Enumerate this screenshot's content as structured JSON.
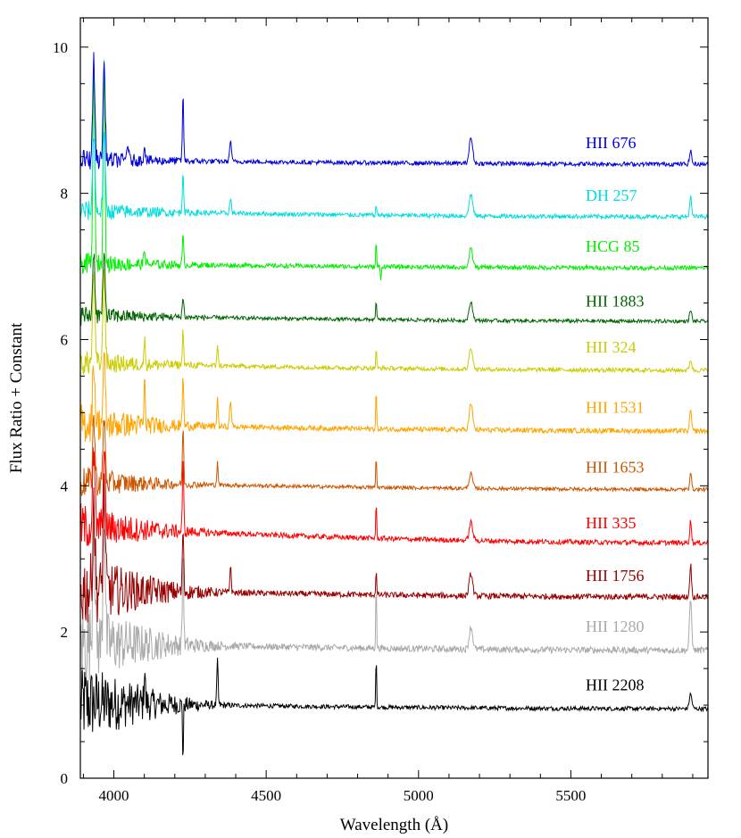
{
  "chart_data": {
    "type": "line",
    "title": "",
    "xlabel": "Wavelength (Å)",
    "ylabel": "Flux Ratio + Constant",
    "xlim": [
      3890,
      5950
    ],
    "ylim": [
      0,
      10.4
    ],
    "xticks": [
      4000,
      4500,
      5000,
      5500
    ],
    "yticks": [
      0,
      2,
      4,
      6,
      8,
      10
    ],
    "grid": false,
    "legend": "inline labels at right",
    "series": [
      {
        "name": "HII 676",
        "color": "#0000dd",
        "offset": 8.4,
        "slope": 0.06,
        "labels_y": 8.62,
        "noise": 0.03,
        "blue_noise": 0.12,
        "features": [
          [
            3934,
            1.35,
            5
          ],
          [
            3968,
            1.3,
            5
          ],
          [
            4227,
            0.9,
            3
          ],
          [
            4383,
            0.3,
            4
          ],
          [
            5172,
            0.35,
            8
          ],
          [
            5893,
            0.18,
            5
          ],
          [
            4045,
            0.25,
            4
          ],
          [
            4101,
            0.2,
            4
          ]
        ]
      },
      {
        "name": "DH 257",
        "color": "#00dddd",
        "offset": 7.68,
        "slope": 0.08,
        "labels_y": 7.9,
        "noise": 0.03,
        "blue_noise": 0.12,
        "features": [
          [
            3934,
            1.1,
            5
          ],
          [
            3968,
            1.05,
            5
          ],
          [
            4227,
            0.6,
            3
          ],
          [
            4383,
            0.2,
            4
          ],
          [
            5172,
            0.3,
            8
          ],
          [
            5893,
            0.3,
            4
          ],
          [
            4861,
            0.15,
            2
          ]
        ]
      },
      {
        "name": "HCG 85",
        "color": "#00ee00",
        "offset": 6.98,
        "slope": 0.06,
        "labels_y": 7.2,
        "noise": 0.03,
        "blue_noise": 0.12,
        "features": [
          [
            3934,
            2.9,
            4
          ],
          [
            3968,
            2.9,
            4
          ],
          [
            4227,
            0.4,
            3
          ],
          [
            4861,
            0.35,
            2
          ],
          [
            4876,
            -0.2,
            2
          ],
          [
            5172,
            0.25,
            8
          ],
          [
            4101,
            0.2,
            4
          ]
        ]
      },
      {
        "name": "HII 1883",
        "color": "#006400",
        "offset": 6.25,
        "slope": 0.08,
        "labels_y": 6.45,
        "noise": 0.025,
        "blue_noise": 0.12,
        "features": [
          [
            3934,
            0.9,
            5
          ],
          [
            3968,
            0.85,
            5
          ],
          [
            4227,
            0.25,
            4
          ],
          [
            4861,
            0.3,
            2
          ],
          [
            5172,
            0.25,
            8
          ],
          [
            5893,
            0.15,
            5
          ]
        ]
      },
      {
        "name": "HII 324",
        "color": "#cccc00",
        "offset": 5.58,
        "slope": 0.1,
        "labels_y": 5.82,
        "noise": 0.03,
        "blue_noise": 0.15,
        "features": [
          [
            3934,
            1.3,
            5
          ],
          [
            3968,
            1.3,
            5
          ],
          [
            4101,
            0.35,
            3
          ],
          [
            4227,
            0.5,
            3
          ],
          [
            4340,
            0.3,
            3
          ],
          [
            4861,
            0.3,
            2
          ],
          [
            5172,
            0.3,
            8
          ],
          [
            5893,
            0.15,
            5
          ]
        ]
      },
      {
        "name": "HII 1531",
        "color": "#ffa500",
        "offset": 4.75,
        "slope": 0.1,
        "labels_y": 5.0,
        "noise": 0.035,
        "blue_noise": 0.25,
        "features": [
          [
            3934,
            0.9,
            5
          ],
          [
            3968,
            0.9,
            5
          ],
          [
            4101,
            0.6,
            3
          ],
          [
            4227,
            0.7,
            3
          ],
          [
            4340,
            0.4,
            3
          ],
          [
            4383,
            0.35,
            4
          ],
          [
            4861,
            0.55,
            2
          ],
          [
            5172,
            0.35,
            8
          ],
          [
            5893,
            0.3,
            4
          ]
        ]
      },
      {
        "name": "HII 1653",
        "color": "#cc5500",
        "offset": 3.95,
        "slope": 0.1,
        "labels_y": 4.18,
        "noise": 0.025,
        "blue_noise": 0.2,
        "features": [
          [
            3934,
            0.9,
            5
          ],
          [
            3968,
            0.9,
            5
          ],
          [
            4227,
            0.8,
            3
          ],
          [
            4340,
            0.3,
            3
          ],
          [
            4861,
            0.45,
            2
          ],
          [
            5172,
            0.2,
            8
          ],
          [
            5893,
            0.25,
            4
          ]
        ]
      },
      {
        "name": "HII 335",
        "color": "#ff0000",
        "offset": 3.22,
        "slope": 0.22,
        "labels_y": 3.42,
        "noise": 0.035,
        "blue_noise": 0.3,
        "features": [
          [
            3934,
            1.0,
            5
          ],
          [
            3968,
            1.0,
            5
          ],
          [
            4227,
            1.0,
            3
          ],
          [
            4861,
            0.5,
            2
          ],
          [
            5172,
            0.25,
            8
          ],
          [
            5893,
            0.3,
            4
          ]
        ]
      },
      {
        "name": "HII 1756",
        "color": "#990000",
        "offset": 2.48,
        "slope": 0.1,
        "labels_y": 2.7,
        "noise": 0.04,
        "blue_noise": 0.5,
        "features": [
          [
            3934,
            1.3,
            5
          ],
          [
            3968,
            1.3,
            5
          ],
          [
            4227,
            0.9,
            3
          ],
          [
            4383,
            0.4,
            3
          ],
          [
            4861,
            0.35,
            2
          ],
          [
            5172,
            0.3,
            8
          ],
          [
            5893,
            0.45,
            4
          ]
        ]
      },
      {
        "name": "HII 1280",
        "color": "#aaaaaa",
        "offset": 1.75,
        "slope": 0.1,
        "labels_y": 2.0,
        "noise": 0.045,
        "blue_noise": 0.55,
        "features": [
          [
            3934,
            1.8,
            5
          ],
          [
            3968,
            1.8,
            5
          ],
          [
            4227,
            1.3,
            3
          ],
          [
            4861,
            0.9,
            2
          ],
          [
            5172,
            0.3,
            8
          ],
          [
            5893,
            0.7,
            5
          ]
        ]
      },
      {
        "name": "HII 2208",
        "color": "#000000",
        "offset": 0.95,
        "slope": 0.08,
        "labels_y": 1.2,
        "noise": 0.03,
        "blue_noise": 0.55,
        "features": [
          [
            4101,
            0.5,
            3
          ],
          [
            4227,
            -0.8,
            2
          ],
          [
            4340,
            0.6,
            3
          ],
          [
            4861,
            0.7,
            2
          ],
          [
            5893,
            0.2,
            6
          ]
        ]
      }
    ]
  }
}
